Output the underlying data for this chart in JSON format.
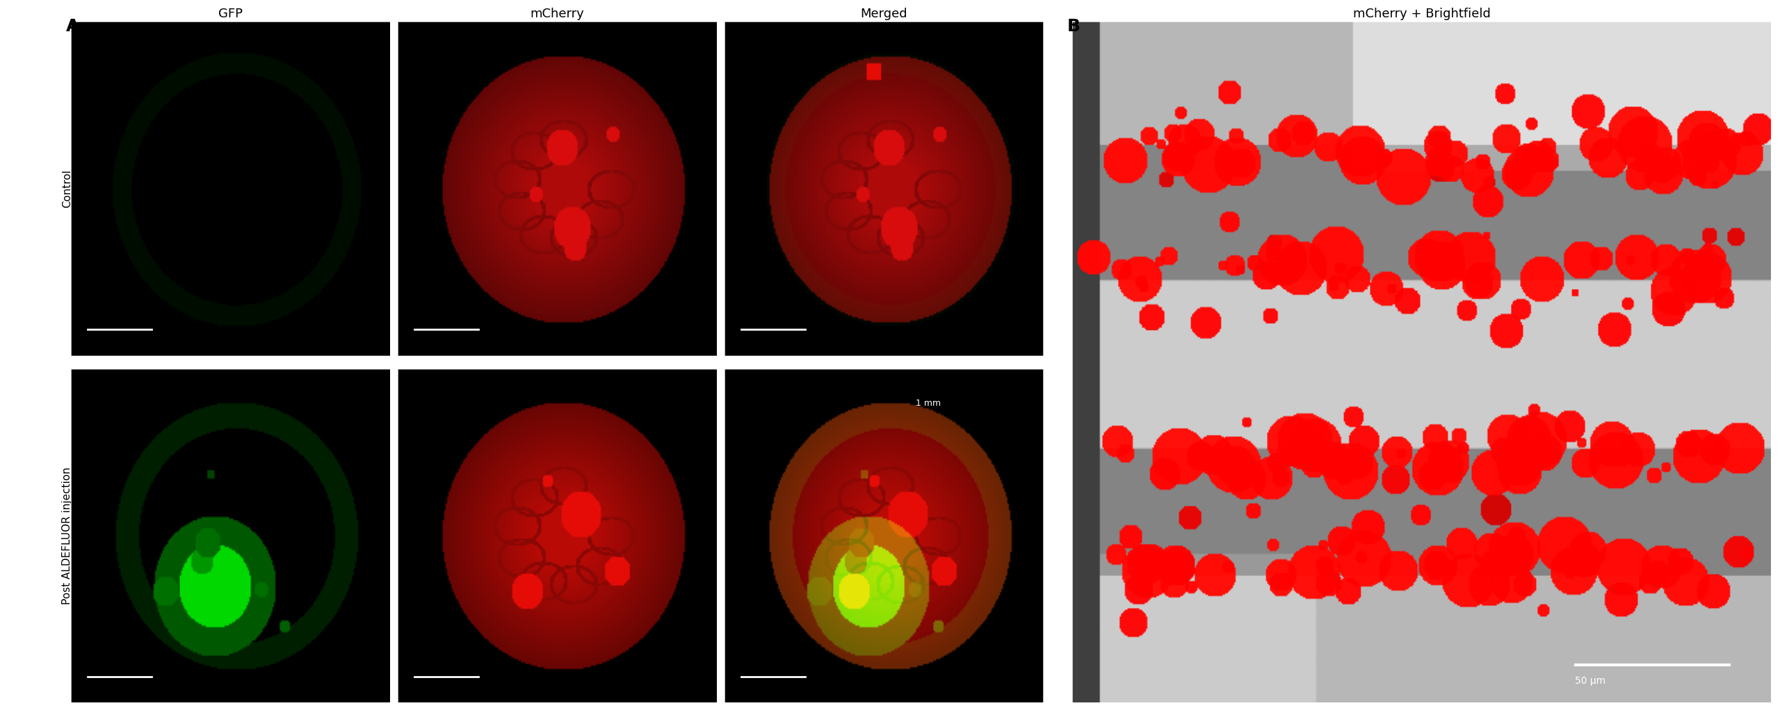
{
  "panel_A_label": "A",
  "panel_B_label": "B",
  "col_labels": [
    "GFP",
    "mCherry",
    "Merged"
  ],
  "row_labels": [
    "Control",
    "Post ALDEFLUOR injection"
  ],
  "panel_B_title": "mCherry + Brightfield",
  "scale_bar_A_text": "1 mm",
  "scale_bar_B_text": "50 μm",
  "bg_color": "#ffffff",
  "panel_bg": "#000000",
  "label_fontsize": 13,
  "title_fontsize": 13,
  "panel_letter_fontsize": 18,
  "row_label_fontsize": 11
}
